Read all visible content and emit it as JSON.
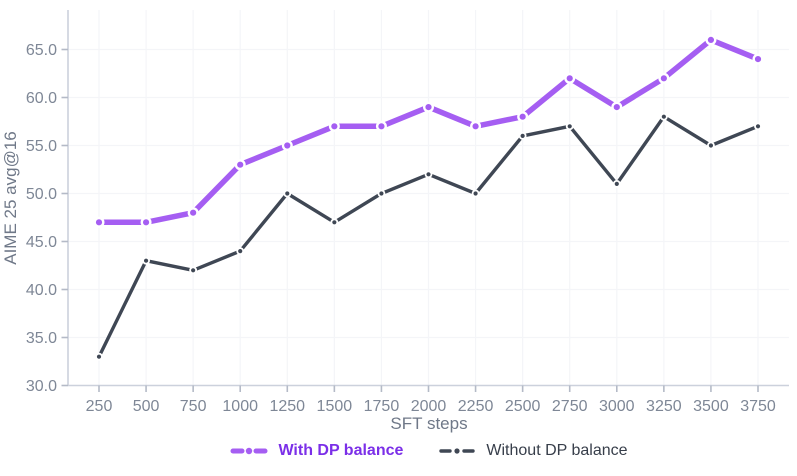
{
  "chart_data": {
    "type": "line",
    "title": "",
    "xlabel": "SFT steps",
    "ylabel": "AIME 25 avg@16",
    "x": [
      250,
      500,
      750,
      1000,
      1250,
      1500,
      1750,
      2000,
      2250,
      2500,
      2750,
      3000,
      3250,
      3500,
      3750
    ],
    "x_tick_labels": [
      "250",
      "500",
      "750",
      "1000",
      "1250",
      "1500",
      "1750",
      "2000",
      "2250",
      "2500",
      "2750",
      "3000",
      "3250",
      "3500",
      "3750"
    ],
    "y_ticks": [
      30,
      35,
      40,
      45,
      50,
      55,
      60,
      65
    ],
    "y_tick_labels": [
      "30.0",
      "35.0",
      "40.0",
      "45.0",
      "50.0",
      "55.0",
      "60.0",
      "65.0"
    ],
    "ylim": [
      30,
      65
    ],
    "grid": true,
    "legend_position": "bottom",
    "series": [
      {
        "name": "With DP balance",
        "color": "#a55ef2",
        "label_color": "#7b2fe8",
        "bold_label": true,
        "line_width": 5.5,
        "marker_radius": 4.3,
        "values": [
          47,
          47,
          48,
          53,
          55,
          57,
          57,
          59,
          57,
          58,
          62,
          59,
          62,
          66,
          64
        ]
      },
      {
        "name": "Without DP balance",
        "color": "#3f4754",
        "label_color": "#373e4a",
        "bold_label": false,
        "line_width": 3.4,
        "marker_radius": 3.0,
        "values": [
          33,
          43,
          42,
          44,
          50,
          47,
          50,
          52,
          50,
          56,
          57,
          51,
          58,
          55,
          57
        ]
      }
    ],
    "colors": {
      "axis_line": "#ccd1dc",
      "tick_mark": "#b4bac7",
      "tick_text": "#7e8796",
      "grid_line": "#f4f5f8",
      "background": "#ffffff"
    }
  }
}
